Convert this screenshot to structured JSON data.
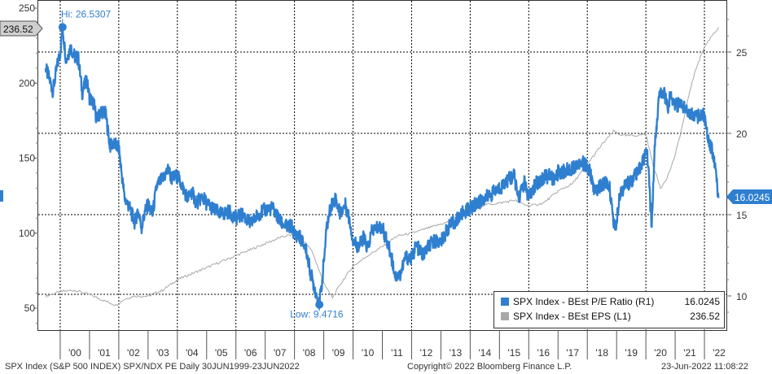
{
  "chart_data": {
    "type": "line",
    "x_tick_labels": [
      "'00",
      "'01",
      "'02",
      "'03",
      "'04",
      "'05",
      "'06",
      "'07",
      "'08",
      "'09",
      "'10",
      "'11",
      "'12",
      "'13",
      "'14",
      "'15",
      "'16",
      "'17",
      "'18",
      "'19",
      "'20",
      "'21",
      "'22"
    ],
    "left_axis": {
      "ticks": [
        50,
        100,
        150,
        200,
        250
      ],
      "range": [
        40,
        250
      ]
    },
    "right_axis": {
      "ticks": [
        10,
        15,
        20,
        25
      ],
      "range": [
        9,
        27.5
      ]
    },
    "grid": true,
    "legend_position": "bottom-right",
    "series": [
      {
        "name": "SPX Index - BEst P/E Ratio (R1)",
        "axis": "right",
        "color": "#2f7fd0",
        "last_value": "16.0245",
        "points": [
          [
            1999.5,
            24.0
          ],
          [
            1999.62,
            23.4
          ],
          [
            1999.75,
            22.6
          ],
          [
            1999.88,
            24.0
          ],
          [
            2000.0,
            25.0
          ],
          [
            2000.08,
            26.53
          ],
          [
            2000.2,
            24.5
          ],
          [
            2000.35,
            25.3
          ],
          [
            2000.5,
            24.7
          ],
          [
            2000.62,
            24.6
          ],
          [
            2000.75,
            22.5
          ],
          [
            2000.9,
            23.3
          ],
          [
            2001.0,
            22.2
          ],
          [
            2001.15,
            21.8
          ],
          [
            2001.25,
            20.8
          ],
          [
            2001.4,
            21.4
          ],
          [
            2001.55,
            21.2
          ],
          [
            2001.7,
            19.2
          ],
          [
            2001.8,
            19.4
          ],
          [
            2002.0,
            19.1
          ],
          [
            2002.1,
            17.5
          ],
          [
            2002.2,
            16.0
          ],
          [
            2002.35,
            15.5
          ],
          [
            2002.55,
            14.5
          ],
          [
            2002.65,
            15.3
          ],
          [
            2002.78,
            14.2
          ],
          [
            2002.9,
            15.2
          ],
          [
            2003.0,
            15.6
          ],
          [
            2003.15,
            15.0
          ],
          [
            2003.3,
            16.8
          ],
          [
            2003.5,
            17.2
          ],
          [
            2003.7,
            17.8
          ],
          [
            2003.8,
            17.2
          ],
          [
            2004.0,
            17.4
          ],
          [
            2004.2,
            16.6
          ],
          [
            2004.35,
            16.0
          ],
          [
            2004.5,
            16.4
          ],
          [
            2004.65,
            15.7
          ],
          [
            2004.85,
            16.1
          ],
          [
            2005.0,
            15.7
          ],
          [
            2005.25,
            15.3
          ],
          [
            2005.5,
            15.0
          ],
          [
            2005.75,
            15.2
          ],
          [
            2006.0,
            14.8
          ],
          [
            2006.25,
            15.0
          ],
          [
            2006.5,
            14.4
          ],
          [
            2006.75,
            15.0
          ],
          [
            2007.0,
            15.3
          ],
          [
            2007.25,
            15.4
          ],
          [
            2007.5,
            14.6
          ],
          [
            2007.75,
            14.2
          ],
          [
            2007.9,
            14.3
          ],
          [
            2008.0,
            13.8
          ],
          [
            2008.2,
            13.6
          ],
          [
            2008.4,
            12.8
          ],
          [
            2008.55,
            11.4
          ],
          [
            2008.75,
            10.1
          ],
          [
            2008.85,
            9.47
          ],
          [
            2008.95,
            11.0
          ],
          [
            2009.1,
            14.2
          ],
          [
            2009.25,
            15.6
          ],
          [
            2009.4,
            16.0
          ],
          [
            2009.55,
            15.1
          ],
          [
            2009.75,
            15.6
          ],
          [
            2009.9,
            14.5
          ],
          [
            2010.0,
            13.4
          ],
          [
            2010.2,
            13.0
          ],
          [
            2010.35,
            13.6
          ],
          [
            2010.5,
            12.9
          ],
          [
            2010.65,
            14.0
          ],
          [
            2010.85,
            14.2
          ],
          [
            2011.0,
            14.2
          ],
          [
            2011.15,
            13.4
          ],
          [
            2011.3,
            12.5
          ],
          [
            2011.45,
            11.2
          ],
          [
            2011.6,
            11.3
          ],
          [
            2011.8,
            12.4
          ],
          [
            2012.0,
            12.3
          ],
          [
            2012.15,
            13.1
          ],
          [
            2012.4,
            12.5
          ],
          [
            2012.55,
            13.0
          ],
          [
            2012.8,
            13.4
          ],
          [
            2013.0,
            13.3
          ],
          [
            2013.25,
            14.2
          ],
          [
            2013.5,
            14.6
          ],
          [
            2013.75,
            15.1
          ],
          [
            2014.0,
            15.4
          ],
          [
            2014.25,
            15.7
          ],
          [
            2014.5,
            16.0
          ],
          [
            2014.75,
            16.3
          ],
          [
            2015.0,
            16.6
          ],
          [
            2015.25,
            17.1
          ],
          [
            2015.5,
            17.4
          ],
          [
            2015.65,
            16.0
          ],
          [
            2015.85,
            17.0
          ],
          [
            2016.0,
            16.0
          ],
          [
            2016.25,
            16.9
          ],
          [
            2016.5,
            17.3
          ],
          [
            2016.75,
            17.4
          ],
          [
            2016.9,
            17.0
          ],
          [
            2017.0,
            17.6
          ],
          [
            2017.25,
            17.7
          ],
          [
            2017.5,
            17.9
          ],
          [
            2017.75,
            18.3
          ],
          [
            2017.95,
            18.0
          ],
          [
            2018.1,
            17.6
          ],
          [
            2018.25,
            16.4
          ],
          [
            2018.4,
            16.7
          ],
          [
            2018.6,
            16.9
          ],
          [
            2018.75,
            16.8
          ],
          [
            2018.9,
            14.6
          ],
          [
            2018.97,
            14.2
          ],
          [
            2019.1,
            16.3
          ],
          [
            2019.25,
            16.7
          ],
          [
            2019.5,
            17.1
          ],
          [
            2019.75,
            17.6
          ],
          [
            2019.92,
            18.4
          ],
          [
            2020.05,
            18.8
          ],
          [
            2020.2,
            14.2
          ],
          [
            2020.3,
            19.2
          ],
          [
            2020.45,
            22.2
          ],
          [
            2020.6,
            22.7
          ],
          [
            2020.75,
            21.6
          ],
          [
            2020.85,
            22.4
          ],
          [
            2021.0,
            21.8
          ],
          [
            2021.25,
            21.7
          ],
          [
            2021.5,
            21.3
          ],
          [
            2021.75,
            21.0
          ],
          [
            2021.95,
            21.3
          ],
          [
            2022.1,
            20.0
          ],
          [
            2022.25,
            19.0
          ],
          [
            2022.38,
            18.0
          ],
          [
            2022.45,
            16.3
          ],
          [
            2022.48,
            16.02
          ]
        ]
      },
      {
        "name": "SPX Index - BEst EPS (L1)",
        "axis": "left",
        "color": "#a8a8a8",
        "last_value": "236.52",
        "points": [
          [
            1999.5,
            58
          ],
          [
            2000.0,
            61
          ],
          [
            2000.5,
            62
          ],
          [
            2001.0,
            59
          ],
          [
            2001.5,
            55
          ],
          [
            2001.9,
            52
          ],
          [
            2002.2,
            56
          ],
          [
            2002.5,
            58
          ],
          [
            2003.0,
            58
          ],
          [
            2003.5,
            62
          ],
          [
            2004.0,
            69
          ],
          [
            2004.5,
            73
          ],
          [
            2005.0,
            77
          ],
          [
            2005.5,
            81
          ],
          [
            2006.0,
            85
          ],
          [
            2006.5,
            89
          ],
          [
            2007.0,
            93
          ],
          [
            2007.5,
            97
          ],
          [
            2007.9,
            99
          ],
          [
            2008.3,
            95
          ],
          [
            2008.6,
            88
          ],
          [
            2008.9,
            72
          ],
          [
            2009.1,
            63
          ],
          [
            2009.3,
            57
          ],
          [
            2009.6,
            67
          ],
          [
            2010.0,
            78
          ],
          [
            2010.5,
            85
          ],
          [
            2011.0,
            91
          ],
          [
            2011.5,
            98
          ],
          [
            2012.0,
            100
          ],
          [
            2012.5,
            103
          ],
          [
            2013.0,
            106
          ],
          [
            2013.5,
            109
          ],
          [
            2014.0,
            114
          ],
          [
            2014.5,
            119
          ],
          [
            2015.0,
            120
          ],
          [
            2015.5,
            122
          ],
          [
            2016.0,
            118
          ],
          [
            2016.5,
            120
          ],
          [
            2017.0,
            128
          ],
          [
            2017.5,
            133
          ],
          [
            2018.0,
            146
          ],
          [
            2018.5,
            159
          ],
          [
            2018.9,
            168
          ],
          [
            2019.2,
            165
          ],
          [
            2019.6,
            165
          ],
          [
            2020.0,
            166
          ],
          [
            2020.25,
            145
          ],
          [
            2020.5,
            130
          ],
          [
            2020.75,
            138
          ],
          [
            2021.0,
            152
          ],
          [
            2021.25,
            172
          ],
          [
            2021.5,
            195
          ],
          [
            2021.75,
            212
          ],
          [
            2022.0,
            224
          ],
          [
            2022.3,
            233
          ],
          [
            2022.48,
            236.52
          ]
        ]
      }
    ],
    "annotations": {
      "high": "Hi: 26.5307",
      "low": "Low: 9.4716"
    },
    "left_current_label": "236.52",
    "right_current_label": "16.0245"
  },
  "footer": {
    "left": "SPX Index (S&P 500 INDEX) SPX/NDX PE  Daily 30JUN1999-23JUN2022",
    "center": "Copyright© 2022 Bloomberg Finance L.P.",
    "right": "23-Jun-2022 11:08:22"
  }
}
